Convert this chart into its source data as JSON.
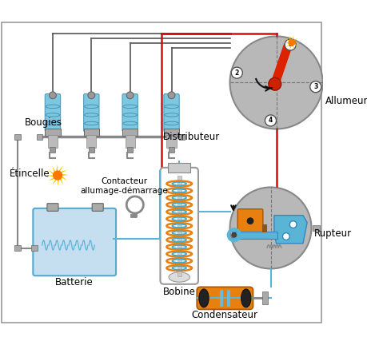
{
  "red": "#cc1111",
  "blue": "#5ab4d6",
  "blue_dark": "#3388bb",
  "orange": "#e88010",
  "gray_circ": "#b8b8b8",
  "dark": "#444444",
  "lgray": "#999999",
  "bat_fill": "#c5dff0",
  "spark_y": "#ffcc00",
  "spark_o": "#ff7700",
  "plug_blue": "#7bc8e0",
  "wire_gray": "#555555",
  "labels": {
    "bougies": "Bougies",
    "etincelle": "Étincelle",
    "contacteur": "Contacteur\nallumage-démarrage",
    "distributeur": "Distributeur",
    "allumeur": "Allumeur",
    "batterie": "Batterie",
    "bobine": "Bobine",
    "rupteur": "Rupteur",
    "condensateur": "Condensateur"
  }
}
